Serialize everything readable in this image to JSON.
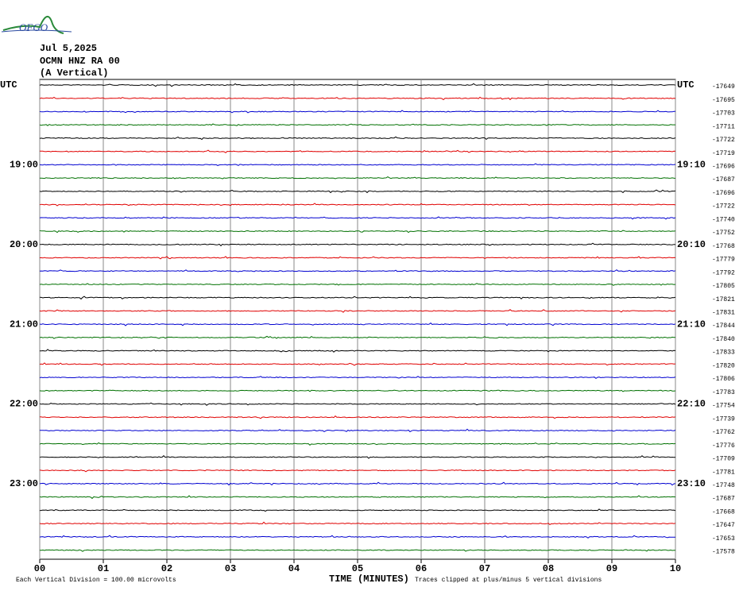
{
  "logo": "OFGO",
  "header": {
    "date": "Jul 5,2025",
    "station": "OCMN HNZ RA 00",
    "component": "(A Vertical)"
  },
  "left_labels": [
    "UTC",
    "19:00",
    "20:00",
    "21:00",
    "22:00",
    "23:00"
  ],
  "right_labels": [
    "UTC",
    "19:10",
    "20:10",
    "21:10",
    "22:10",
    "23:10"
  ],
  "offsets": [
    -17649,
    -17695,
    -17703,
    -17711,
    -17722,
    -17719,
    -17696,
    -17687,
    -17696,
    -17722,
    -17740,
    -17752,
    -17768,
    -17779,
    -17792,
    -17805,
    -17821,
    -17831,
    -17844,
    -17840,
    -17833,
    -17820,
    -17806,
    -17783,
    -17754,
    -17739,
    -17762,
    -17776,
    -17709,
    -17781,
    -17748,
    -17687,
    -17668,
    -17647,
    -17653,
    -17578
  ],
  "trace_colors": [
    "#000000",
    "#e00000",
    "#0000d0",
    "#007000"
  ],
  "x_axis": {
    "ticks": [
      "00",
      "01",
      "02",
      "03",
      "04",
      "05",
      "06",
      "07",
      "08",
      "09",
      "10"
    ],
    "label": "TIME (MINUTES)"
  },
  "footer": {
    "scale": "Each Vertical Division =  100.00 microvolts",
    "clip": "Traces clipped at plus/minus 5 vertical divisions"
  }
}
